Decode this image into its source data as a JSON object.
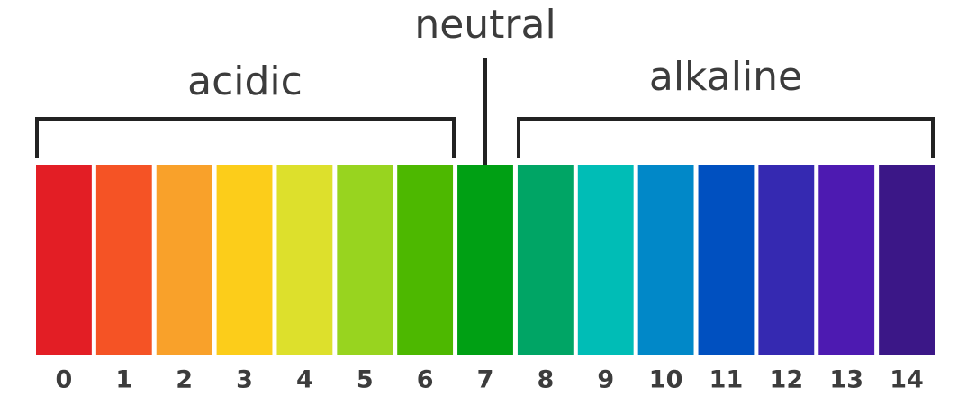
{
  "labels": {
    "acidic": "acidic",
    "neutral": "neutral",
    "alkaline": "alkaline"
  },
  "scale": [
    {
      "label": "0",
      "color": "#e31e25"
    },
    {
      "label": "1",
      "color": "#f55325"
    },
    {
      "label": "2",
      "color": "#f9a12a"
    },
    {
      "label": "3",
      "color": "#fccd1a"
    },
    {
      "label": "4",
      "color": "#dde02c"
    },
    {
      "label": "5",
      "color": "#98d41f"
    },
    {
      "label": "6",
      "color": "#4db800"
    },
    {
      "label": "7",
      "color": "#00a014"
    },
    {
      "label": "8",
      "color": "#00a565"
    },
    {
      "label": "9",
      "color": "#00bdb6"
    },
    {
      "label": "10",
      "color": "#0188c8"
    },
    {
      "label": "11",
      "color": "#0050c0"
    },
    {
      "label": "12",
      "color": "#3529b1"
    },
    {
      "label": "13",
      "color": "#4d1ab1"
    },
    {
      "label": "14",
      "color": "#3b1787"
    }
  ]
}
